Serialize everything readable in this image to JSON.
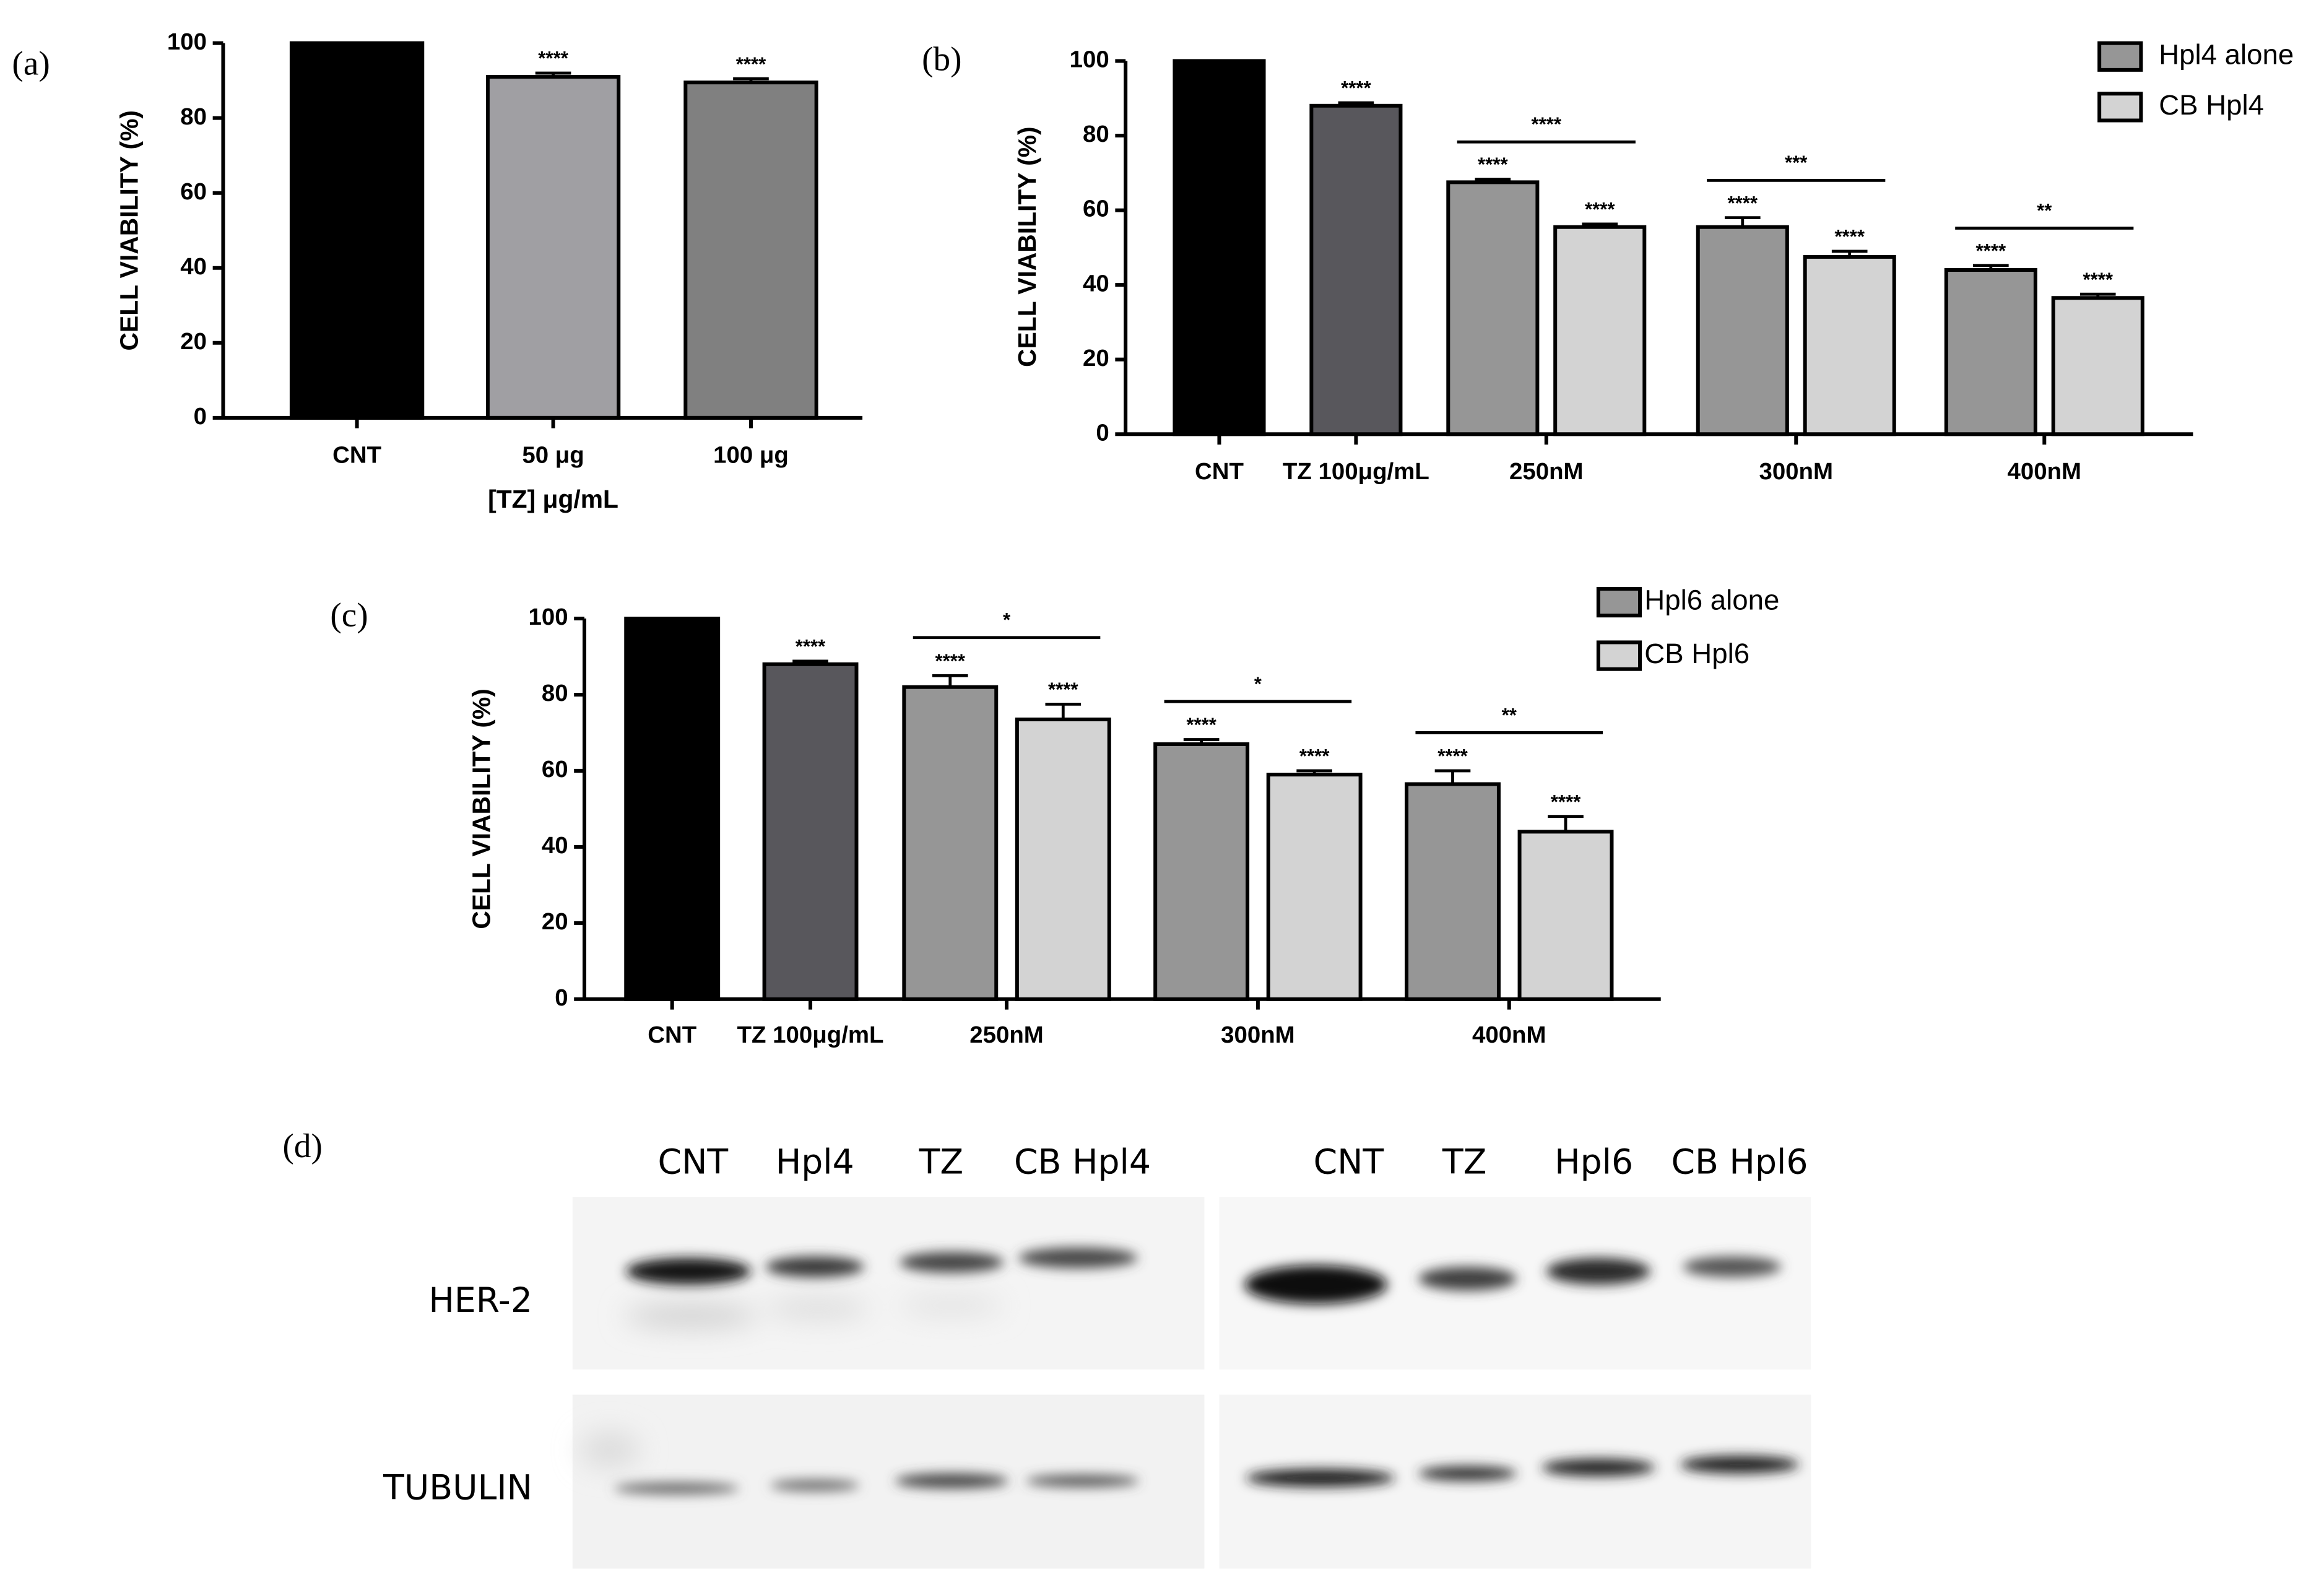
{
  "chart_data": [
    {
      "type": "bar",
      "panel": "(a)",
      "ylabel": "CELL VIABILITY (%)",
      "xlabel": "[TZ] μg/mL",
      "categories": [
        "CNT",
        "50 μg",
        "100 μg"
      ],
      "values": [
        100,
        91,
        89.5
      ],
      "errors": [
        null,
        1,
        1
      ],
      "colors": [
        "#000000",
        "#a09fa3",
        "#808080"
      ],
      "annotations": [
        null,
        "****",
        "****"
      ],
      "ylim": [
        0,
        100
      ],
      "yticks": [
        0,
        20,
        40,
        60,
        80,
        100
      ]
    },
    {
      "type": "grouped_bar",
      "panel": "(b)",
      "ylabel": "CELL VIABILITY (%)",
      "categories": [
        "CNT",
        "TZ 100μg/mL",
        "250nM",
        "300nM",
        "400nM"
      ],
      "controls": {
        "values": [
          100,
          88,
          null,
          null,
          null
        ],
        "errors": [
          null,
          0.8,
          null,
          null,
          null
        ],
        "colors": [
          "#000000",
          "#58575c",
          null,
          null,
          null
        ],
        "annotations": [
          null,
          "****",
          null,
          null,
          null
        ]
      },
      "series": [
        {
          "name": "Hpl4  alone",
          "color": "#969696",
          "values": [
            null,
            null,
            67.5,
            55.5,
            44
          ],
          "errors": [
            null,
            null,
            0.8,
            2.5,
            1.2
          ],
          "annotations": [
            null,
            null,
            "****",
            "****",
            "****"
          ]
        },
        {
          "name": "CB Hpl4",
          "color": "#d3d3d3",
          "values": [
            null,
            null,
            55.5,
            47.5,
            36.5
          ],
          "errors": [
            null,
            null,
            0.8,
            1.5,
            1
          ],
          "annotations": [
            null,
            null,
            "****",
            "****",
            "****"
          ]
        }
      ],
      "comparisons": [
        null,
        null,
        "****",
        "***",
        "**"
      ],
      "ylim": [
        0,
        100
      ],
      "yticks": [
        0,
        20,
        40,
        60,
        80,
        100
      ],
      "legend": "right"
    },
    {
      "type": "grouped_bar",
      "panel": "(c)",
      "ylabel": "CELL VIABILITY (%)",
      "categories": [
        "CNT",
        "TZ 100μg/mL",
        "250nM",
        "300nM",
        "400nM"
      ],
      "controls": {
        "values": [
          100,
          88,
          null,
          null,
          null
        ],
        "errors": [
          null,
          0.8,
          null,
          null,
          null
        ],
        "colors": [
          "#000000",
          "#58575c",
          null,
          null,
          null
        ],
        "annotations": [
          null,
          "****",
          null,
          null,
          null
        ]
      },
      "series": [
        {
          "name": "Hpl6  alone",
          "color": "#969696",
          "values": [
            null,
            null,
            82,
            67,
            56.5
          ],
          "errors": [
            null,
            null,
            3,
            1.2,
            3.5
          ],
          "annotations": [
            null,
            null,
            "****",
            "****",
            "****"
          ]
        },
        {
          "name": "CB Hpl6",
          "color": "#d3d3d3",
          "values": [
            null,
            null,
            73.5,
            59,
            44
          ],
          "errors": [
            null,
            null,
            4,
            1,
            4
          ],
          "annotations": [
            null,
            null,
            "****",
            "****",
            "****"
          ]
        }
      ],
      "comparisons": [
        null,
        null,
        "*",
        "*",
        "**"
      ],
      "ylim": [
        0,
        100
      ],
      "yticks": [
        0,
        20,
        40,
        60,
        80,
        100
      ],
      "legend": "right"
    }
  ],
  "blot": {
    "panel": "(d)",
    "lanes_left": [
      "CNT",
      "Hpl4",
      "TZ",
      "CB Hpl4"
    ],
    "lanes_right": [
      "CNT",
      "TZ",
      "Hpl6",
      "CB Hpl6"
    ],
    "rows": [
      "HER-2",
      "TUBULIN"
    ]
  }
}
